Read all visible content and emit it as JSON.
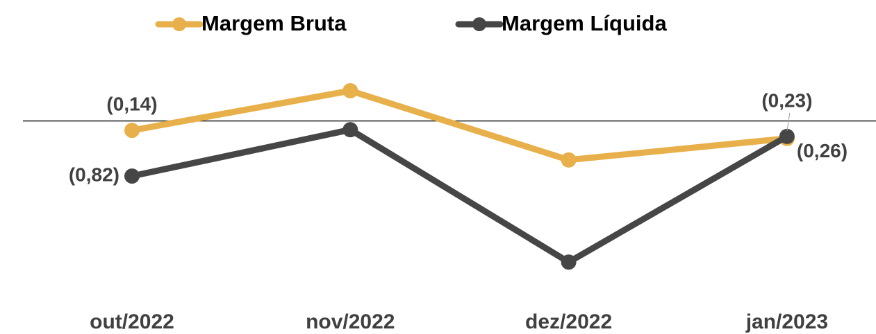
{
  "chart_data": {
    "type": "line",
    "categories": [
      "out/2022",
      "nov/2022",
      "dez/2022",
      "jan/2023"
    ],
    "series": [
      {
        "name": "Margem Bruta",
        "color": "#e8b04a",
        "values": [
          -0.14,
          0.45,
          -0.58,
          -0.26
        ],
        "value_labels": [
          "(0,14)",
          null,
          null,
          "(0,26)"
        ]
      },
      {
        "name": "Margem Líquida",
        "color": "#464646",
        "values": [
          -0.82,
          -0.13,
          -2.1,
          -0.23
        ],
        "value_labels": [
          "(0,82)",
          null,
          null,
          "(0,23)"
        ]
      }
    ],
    "ylim": [
      -2.5,
      0.8
    ],
    "legend": "top"
  }
}
